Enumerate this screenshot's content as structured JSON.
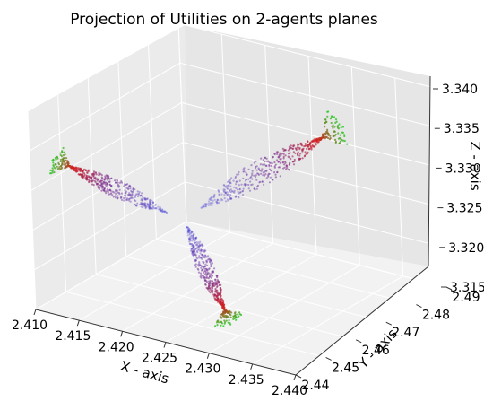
{
  "chart_data": {
    "type": "scatter",
    "projection": "3d",
    "title": "Projection of Utilities on 2-agents planes",
    "xlabel": "X - axis",
    "ylabel": "Y - axis",
    "zlabel": "Z - axis",
    "xlim": [
      2.41,
      2.44
    ],
    "ylim": [
      2.44,
      2.49
    ],
    "zlim": [
      3.315,
      3.34
    ],
    "x_ticks": [
      "2.410",
      "2.415",
      "2.420",
      "2.425",
      "2.430",
      "2.435",
      "2.440"
    ],
    "y_ticks": [
      "2.44",
      "2.45",
      "2.46",
      "2.47",
      "2.48",
      "2.49"
    ],
    "z_ticks": [
      "3.315",
      "3.320",
      "3.325",
      "3.330",
      "3.335",
      "3.340"
    ],
    "grid": true,
    "color_scheme": {
      "blue": "#3b3bd8",
      "purple": "#7a2a8a",
      "red": "#d42020",
      "green": "#22d022"
    },
    "series": [
      {
        "plane": "XZ",
        "y": 2.49,
        "x_range": [
          2.41,
          2.437
        ],
        "z_range": [
          3.316,
          3.339
        ]
      },
      {
        "plane": "YZ",
        "x": 2.41,
        "y_range": [
          2.44,
          2.488
        ],
        "z_range": [
          3.316,
          3.339
        ]
      },
      {
        "plane": "XY",
        "z": 3.315,
        "x_range": [
          2.41,
          2.438
        ],
        "y_range": [
          2.443,
          2.489
        ]
      }
    ]
  }
}
